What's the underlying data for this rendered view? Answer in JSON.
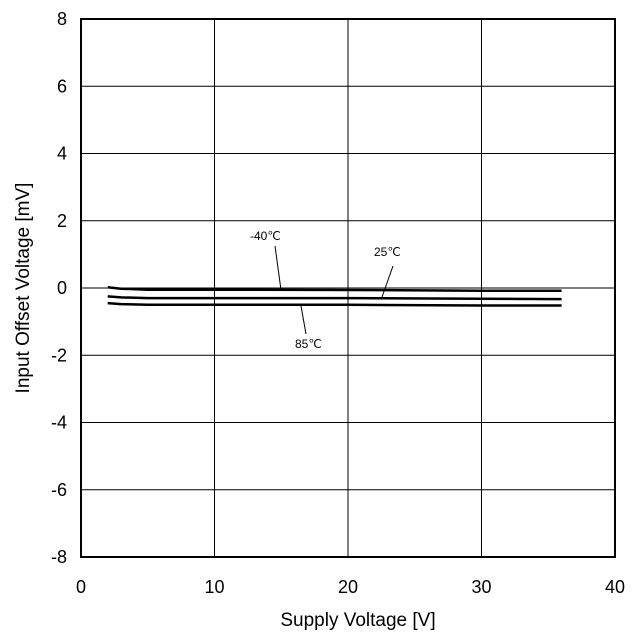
{
  "chart_data": {
    "type": "line",
    "title": "",
    "xlabel": "Supply Voltage [V]",
    "ylabel": "Input Offset Voltage [mV]",
    "xlim": [
      0,
      40
    ],
    "ylim": [
      -8,
      8
    ],
    "x_ticks": [
      0,
      10,
      20,
      30,
      40
    ],
    "y_ticks": [
      -8,
      -6,
      -4,
      -2,
      0,
      2,
      4,
      6,
      8
    ],
    "x_tick_labels": [
      "0",
      "10",
      "20",
      "30",
      "40"
    ],
    "y_tick_labels": [
      "-8",
      "-6",
      "-4",
      "-2",
      "0",
      "2",
      "4",
      "6",
      "8"
    ],
    "grid": true,
    "series": [
      {
        "name": "-40℃",
        "x": [
          2,
          3,
          5,
          10,
          20,
          30,
          36
        ],
        "values": [
          0.02,
          -0.02,
          -0.05,
          -0.05,
          -0.06,
          -0.08,
          -0.08
        ]
      },
      {
        "name": "25℃",
        "x": [
          2,
          3,
          5,
          10,
          20,
          30,
          36
        ],
        "values": [
          -0.25,
          -0.28,
          -0.3,
          -0.3,
          -0.3,
          -0.32,
          -0.33
        ]
      },
      {
        "name": "85℃",
        "x": [
          2,
          3,
          5,
          10,
          20,
          30,
          36
        ],
        "values": [
          -0.45,
          -0.48,
          -0.5,
          -0.5,
          -0.5,
          -0.52,
          -0.52
        ]
      }
    ],
    "annotations": [
      {
        "text": "-40℃",
        "series": 0
      },
      {
        "text": "25℃",
        "series": 1
      },
      {
        "text": "85℃",
        "series": 2
      }
    ],
    "line_color": "#000000"
  }
}
